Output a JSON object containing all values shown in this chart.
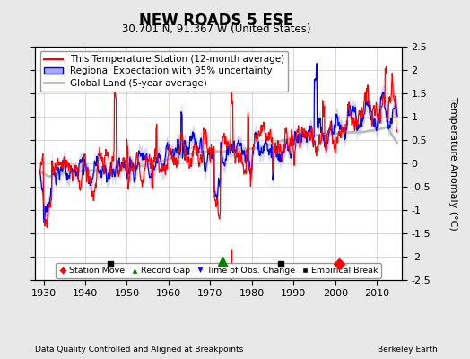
{
  "title": "NEW ROADS 5 ESE",
  "subtitle": "30.701 N, 91.367 W (United States)",
  "ylabel": "Temperature Anomaly (°C)",
  "xlabel_footer": "Data Quality Controlled and Aligned at Breakpoints",
  "footer_right": "Berkeley Earth",
  "ylim": [
    -2.5,
    2.5
  ],
  "xlim": [
    1928,
    2016
  ],
  "yticks": [
    -2.5,
    -2,
    -1.5,
    -1,
    -0.5,
    0,
    0.5,
    1,
    1.5,
    2,
    2.5
  ],
  "xticks": [
    1930,
    1940,
    1950,
    1960,
    1970,
    1980,
    1990,
    2000,
    2010
  ],
  "red_line_color": "#FF0000",
  "blue_line_color": "#0000EE",
  "blue_fill_color": "#AAAAEE",
  "gray_line_color": "#BBBBBB",
  "bg_color": "#E8E8E8",
  "plot_bg_color": "#FFFFFF",
  "grid_color": "#CCCCCC",
  "title_fontsize": 12,
  "subtitle_fontsize": 8.5,
  "legend_fontsize": 7.5,
  "tick_fontsize": 8,
  "marker_y": -2.15,
  "markers": {
    "station_move": {
      "year": 2001,
      "color": "#FF0000",
      "marker": "D",
      "label": "Station Move"
    },
    "record_gap": {
      "year": 1973,
      "color": "#008000",
      "marker": "^",
      "label": "Record Gap"
    },
    "time_obs_change": {
      "year": 1975,
      "color": "#0000FF",
      "marker": "v",
      "label": "Time of Obs. Change"
    },
    "empirical_breaks": [
      {
        "year": 1946,
        "color": "#000000",
        "marker": "s",
        "label": "Empirical Break"
      },
      {
        "year": 1987,
        "color": "#000000",
        "marker": "s",
        "label": "Empirical Break"
      }
    ]
  }
}
